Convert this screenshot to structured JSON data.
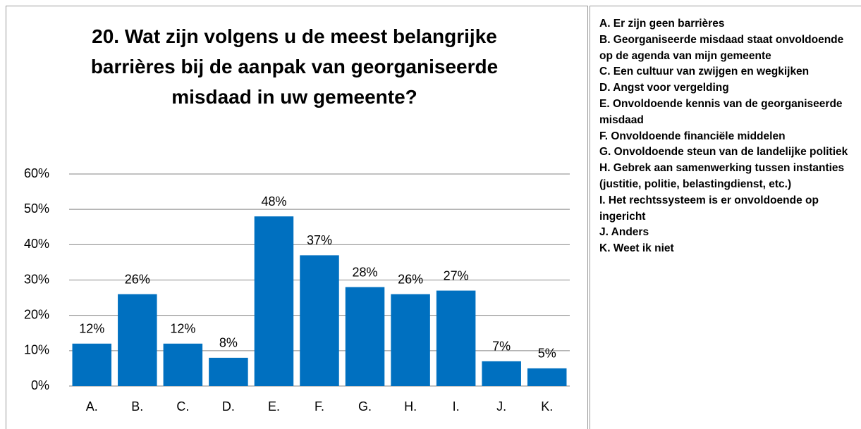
{
  "chart_data": {
    "type": "bar",
    "title": "20. Wat zijn volgens u de meest belangrijke barrières bij de aanpak van georganiseerde misdaad in uw gemeente?",
    "categories": [
      "A.",
      "B.",
      "C.",
      "D.",
      "E.",
      "F.",
      "G.",
      "H.",
      "I.",
      "J.",
      "K."
    ],
    "values": [
      12,
      26,
      12,
      8,
      48,
      37,
      28,
      26,
      27,
      7,
      5
    ],
    "value_labels": [
      "12%",
      "26%",
      "12%",
      "8%",
      "48%",
      "37%",
      "28%",
      "26%",
      "27%",
      "7%",
      "5%"
    ],
    "color": "#0070c0",
    "ylim": [
      0,
      60
    ],
    "yticks": [
      {
        "value": 0,
        "label": "0%"
      },
      {
        "value": 10,
        "label": "10%"
      },
      {
        "value": 20,
        "label": "20%"
      },
      {
        "value": 30,
        "label": "30%"
      },
      {
        "value": 40,
        "label": "40%"
      },
      {
        "value": 50,
        "label": "50%"
      },
      {
        "value": 60,
        "label": "60%"
      }
    ],
    "grid": true
  },
  "legend_panel": {
    "items": [
      "A. Er zijn geen barrières",
      "B. Georganiseerde misdaad staat onvoldoende op de agenda van mijn gemeente",
      "C. Een cultuur van zwijgen en wegkijken",
      "D. Angst voor vergelding",
      "E. Onvoldoende kennis van de georganiseerde misdaad",
      "F. Onvoldoende financiële middelen",
      "G. Onvoldoende steun van de landelijke politiek",
      "H. Gebrek aan samenwerking tussen instanties (justitie, politie, belastingdienst, etc.)",
      "I. Het rechtssysteem is er onvoldoende op ingericht",
      "J. Anders",
      "K. Weet ik niet"
    ]
  }
}
